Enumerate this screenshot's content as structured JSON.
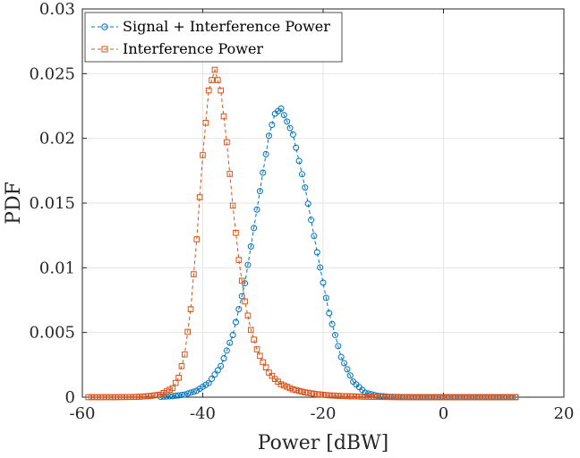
{
  "chart_data": {
    "type": "line",
    "title": "",
    "xlabel": "Power [dBW]",
    "ylabel": "PDF",
    "xlim": [
      -60,
      20
    ],
    "ylim": [
      0,
      0.03
    ],
    "xticks": [
      -60,
      -40,
      -20,
      0,
      20
    ],
    "xtick_labels": [
      "-60",
      "-40",
      "-20",
      "0",
      "20"
    ],
    "yticks": [
      0,
      0.005,
      0.01,
      0.015,
      0.02,
      0.025,
      0.03
    ],
    "ytick_labels": [
      "0",
      "0.005",
      "0.01",
      "0.015",
      "0.02",
      "0.025",
      "0.03"
    ],
    "grid": true,
    "legend_position": "top-left",
    "series": [
      {
        "name": "Signal + Interference Power",
        "color": "#0072BD",
        "marker": "circle",
        "linestyle": "dashed",
        "x": [
          -47,
          -45,
          -43,
          -41,
          -39,
          -37,
          -35,
          -33,
          -31,
          -29,
          -28,
          -27,
          -25,
          -23,
          -21,
          -19,
          -17,
          -15,
          -13,
          -11,
          -9,
          -7,
          -5,
          -3,
          -1,
          1,
          3,
          5,
          7,
          9,
          11,
          12
        ],
        "y": [
          3e-05,
          8e-05,
          0.0002,
          0.0005,
          0.0011,
          0.0024,
          0.0048,
          0.0088,
          0.0145,
          0.0202,
          0.0219,
          0.0223,
          0.0203,
          0.0162,
          0.0112,
          0.0065,
          0.0031,
          0.0012,
          0.00035,
          0.0001,
          3e-05,
          1e-05,
          0.0,
          0.0,
          0.0,
          0.0,
          0.0,
          0.0,
          0.0,
          0.0,
          0.0,
          0.0
        ]
      },
      {
        "name": "Interference Power",
        "color": "#D95319",
        "marker": "square",
        "linestyle": "dashed",
        "x": [
          -59,
          -55,
          -51,
          -49,
          -47,
          -45,
          -44,
          -43,
          -42,
          -41,
          -40,
          -39,
          -38,
          -37,
          -36,
          -35,
          -34,
          -33,
          -32,
          -31,
          -30,
          -29,
          -28,
          -27,
          -25,
          -23,
          -21,
          -19,
          -17,
          -15,
          -13,
          -11,
          -9,
          -7,
          -5,
          -3,
          -1,
          1,
          3,
          5,
          7,
          9,
          11,
          12
        ],
        "y": [
          0.0,
          0.0,
          2e-05,
          8e-05,
          0.0002,
          0.0007,
          0.0015,
          0.0033,
          0.0068,
          0.0122,
          0.0187,
          0.0237,
          0.0253,
          0.0237,
          0.0197,
          0.0148,
          0.0106,
          0.0074,
          0.0052,
          0.0037,
          0.0027,
          0.0019,
          0.0014,
          0.001,
          0.0006,
          0.00037,
          0.00023,
          0.00014,
          9e-05,
          6e-05,
          4e-05,
          2e-05,
          1e-05,
          0.0,
          0.0,
          0.0,
          0.0,
          0.0,
          0.0,
          0.0,
          0.0,
          0.0,
          0.0,
          0.0
        ]
      }
    ]
  }
}
